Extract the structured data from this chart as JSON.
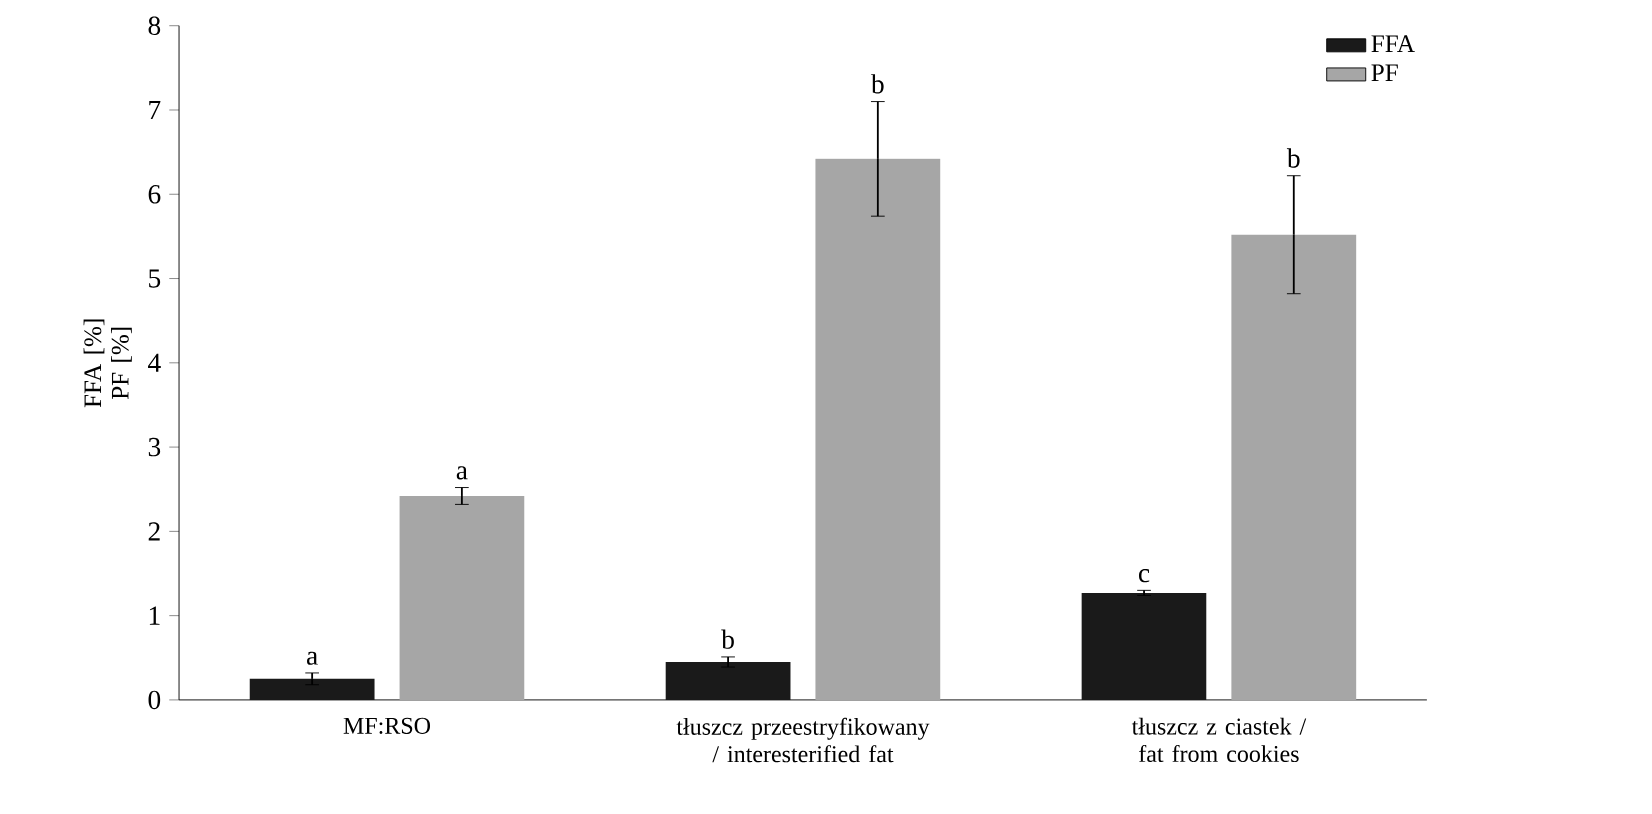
{
  "chart_data": {
    "type": "bar",
    "ylabel": "FFA [%] PF [%]",
    "categories": [
      "MF:RSO",
      "tłuszcz przeestryfikowany / interesterified fat",
      "tłuszcz z ciastek / fat from cookies"
    ],
    "series": [
      {
        "name": "FFA",
        "color": "#1a1a1a",
        "values": [
          0.25,
          0.45,
          1.27
        ],
        "errors": [
          0.07,
          0.06,
          0.03
        ],
        "value_labels": [
          "a",
          "b",
          "c"
        ]
      },
      {
        "name": "PF",
        "color": "#a6a6a6",
        "values": [
          2.42,
          6.42,
          5.52
        ],
        "errors": [
          0.1,
          0.68,
          0.7
        ],
        "value_labels": [
          "a",
          "b",
          "b"
        ]
      }
    ],
    "ylim": [
      0,
      8
    ],
    "yticks": [
      0,
      1,
      2,
      3,
      4,
      5,
      6,
      7,
      8
    ],
    "grid": false,
    "legend": "top right"
  }
}
